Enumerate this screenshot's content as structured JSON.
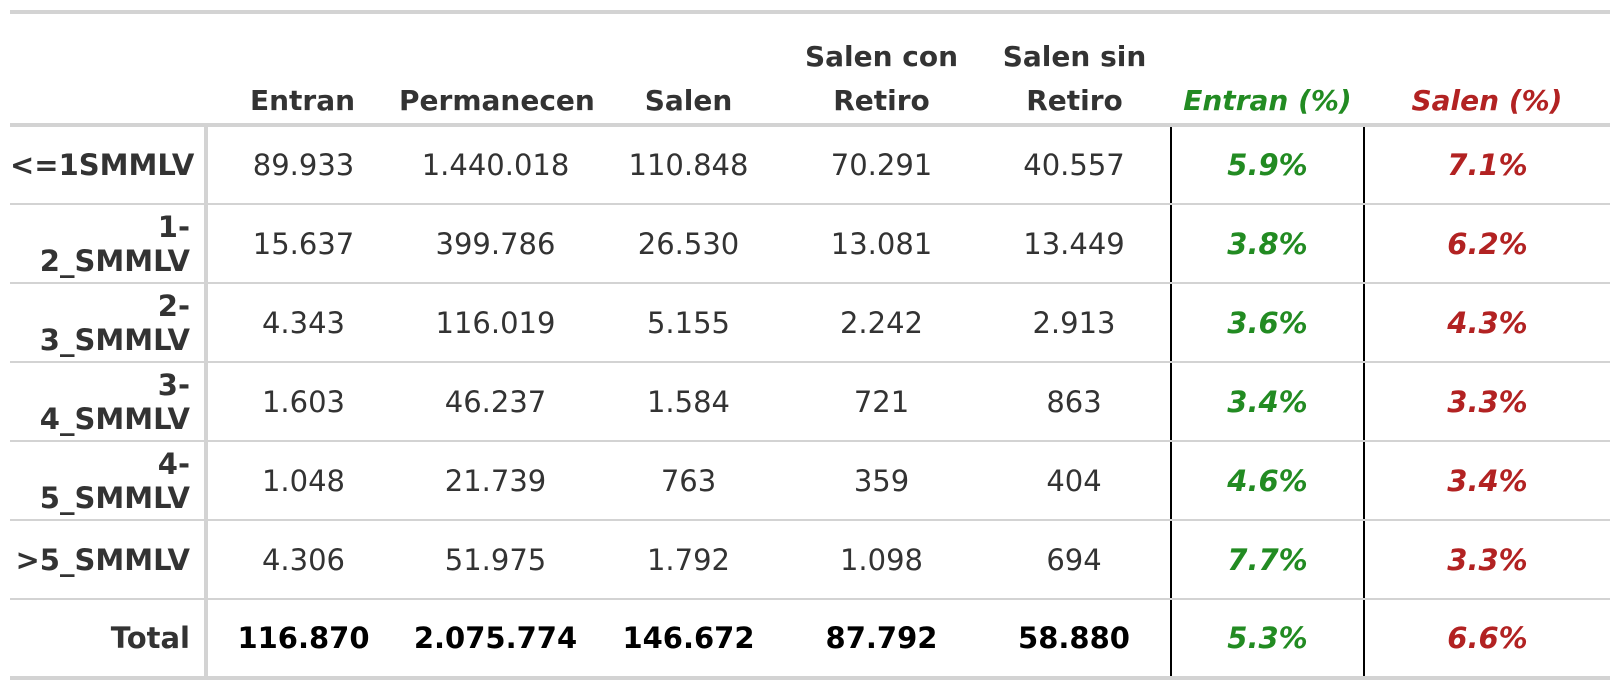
{
  "chart_data": {
    "type": "table",
    "columns": [
      "",
      "Entran",
      "Permanecen",
      "Salen",
      "Salen con Retiro",
      "Salen sin Retiro",
      "Entran (%)",
      "Salen (%)"
    ],
    "header": {
      "col1": "Entran",
      "col2": "Permanecen",
      "col3": "Salen",
      "col4_line1": "Salen con",
      "col4_line2": "Retiro",
      "col5_line1": "Salen sin",
      "col5_line2": "Retiro",
      "col6": "Entran (%)",
      "col7": "Salen (%)"
    },
    "rows": [
      [
        "<=1SMMLV",
        "89.933",
        "1.440.018",
        "110.848",
        "70.291",
        "40.557",
        "5.9%",
        "7.1%"
      ],
      [
        "1-2_SMMLV",
        "15.637",
        "399.786",
        "26.530",
        "13.081",
        "13.449",
        "3.8%",
        "6.2%"
      ],
      [
        "2-3_SMMLV",
        "4.343",
        "116.019",
        "5.155",
        "2.242",
        "2.913",
        "3.6%",
        "4.3%"
      ],
      [
        "3-4_SMMLV",
        "1.603",
        "46.237",
        "1.584",
        "721",
        "863",
        "3.4%",
        "3.3%"
      ],
      [
        "4-5_SMMLV",
        "1.048",
        "21.739",
        "763",
        "359",
        "404",
        "4.6%",
        "3.4%"
      ],
      [
        ">5_SMMLV",
        "4.306",
        "51.975",
        "1.792",
        "1.098",
        "694",
        "7.7%",
        "3.3%"
      ],
      [
        "Total",
        "116.870",
        "2.075.774",
        "146.672",
        "87.792",
        "58.880",
        "5.3%",
        "6.6%"
      ]
    ]
  },
  "colors": {
    "entran_pct": "#228B22",
    "salen_pct": "#B22222",
    "text": "#333333",
    "rule": "#d3d3d3"
  }
}
